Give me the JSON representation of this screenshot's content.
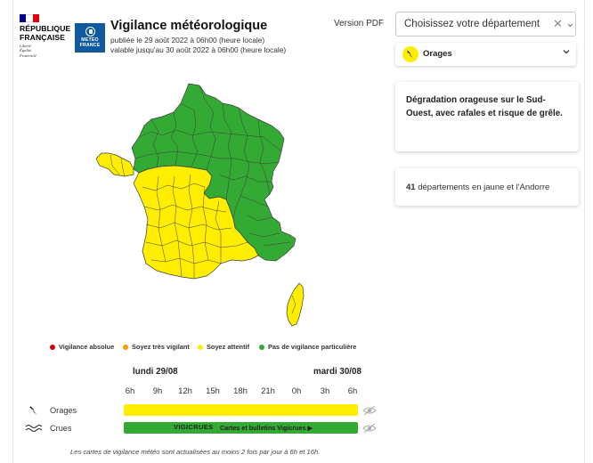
{
  "header": {
    "republic_name_line1": "RÉPUBLIQUE",
    "republic_name_line2": "FRANÇAISE",
    "motto_line1": "Liberté",
    "motto_line2": "Égalité",
    "motto_line3": "Fraternité",
    "meteo_logo_line1": "METEO",
    "meteo_logo_line2": "FRANCE",
    "title": "Vigilance météorologique",
    "published": "publiée le 29 août 2022 à 06h00 (heure locale)",
    "valid_until": "valable jusqu'au 30 août 2022 à 06h00 (heure locale)",
    "pdf_link": "Version PDF"
  },
  "department_select": {
    "placeholder": "Choisissez votre département",
    "clear_icon": "close-icon",
    "chevron_icon": "chevron-down-icon"
  },
  "phenomenon_select": {
    "label": "Orages",
    "icon": "lightning-icon",
    "badge_color": "#ffee00"
  },
  "summary_card": {
    "text": "Dégradation orageuse sur le Sud-Ouest, avec rafales et risque de grêle."
  },
  "count_card": {
    "count": "41",
    "text": " départements en jaune et l'Andorre"
  },
  "map": {
    "yellow_color": "#ffee00",
    "green_color": "#33aa33",
    "border_color": "#4a4a4a"
  },
  "legend": {
    "items": [
      {
        "label": "Vigilance absolue",
        "color": "#cc0000"
      },
      {
        "label": "Soyez très vigilant",
        "color": "#ff9900"
      },
      {
        "label": "Soyez attentif",
        "color": "#ffee00"
      },
      {
        "label": "Pas de vigilance particulière",
        "color": "#33aa33"
      }
    ]
  },
  "timeline": {
    "day1": "lundi 29/08",
    "day2": "mardi 30/08",
    "hours": [
      "6h",
      "9h",
      "12h",
      "15h",
      "18h",
      "21h",
      "0h",
      "3h",
      "6h"
    ],
    "rows": [
      {
        "label": "Orages",
        "icon": "lightning-icon",
        "level_color": "#ffee00"
      },
      {
        "label": "Crues",
        "icon": "waves-icon",
        "level_color": "#33aa33"
      }
    ],
    "vigicrues_logo": "VIGICRUES",
    "vigicrues_link": "Cartes et bulletins Vigicrues ▶"
  },
  "footnote": "Les cartes de vigilance météo sont actualisées au moins 2 fois par jour à 6h et 16h."
}
